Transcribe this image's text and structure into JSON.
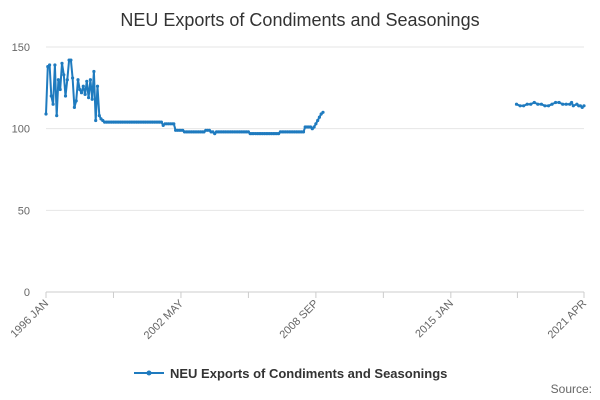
{
  "chart_data": {
    "type": "line",
    "title": "NEU Exports of Condiments and Seasonings",
    "xlabel": "",
    "ylabel": "",
    "ylim": [
      0,
      150
    ],
    "y_ticks": [
      0,
      50,
      100,
      150
    ],
    "x_range": [
      "1996-01",
      "2021-04"
    ],
    "x_tick_labels": [
      {
        "date": "1996-01",
        "label": "1996 JAN"
      },
      {
        "date": "2002-05",
        "label": "2002 MAY"
      },
      {
        "date": "2008-09",
        "label": "2008 SEP"
      },
      {
        "date": "2015-01",
        "label": "2015 JAN"
      },
      {
        "date": "2021-04",
        "label": "2021 APR"
      }
    ],
    "grid": true,
    "legend_position": "bottom",
    "series": [
      {
        "name": "NEU Exports of Condiments and Seasonings",
        "color": "#1f7bbf",
        "segments": [
          [
            [
              "1996-01",
              109
            ],
            [
              "1996-02",
              138
            ],
            [
              "1996-03",
              139
            ],
            [
              "1996-04",
              120
            ],
            [
              "1996-05",
              115
            ],
            [
              "1996-06",
              139
            ],
            [
              "1996-07",
              108
            ],
            [
              "1996-08",
              130
            ],
            [
              "1996-09",
              124
            ],
            [
              "1996-10",
              140
            ],
            [
              "1996-11",
              133
            ],
            [
              "1996-12",
              120
            ],
            [
              "1997-01",
              130
            ],
            [
              "1997-02",
              142
            ],
            [
              "1997-03",
              142
            ],
            [
              "1997-04",
              131
            ],
            [
              "1997-05",
              113
            ],
            [
              "1997-06",
              117
            ],
            [
              "1997-07",
              130
            ],
            [
              "1997-08",
              124
            ],
            [
              "1997-09",
              122
            ],
            [
              "1997-10",
              126
            ],
            [
              "1997-11",
              121
            ],
            [
              "1997-12",
              129
            ],
            [
              "1998-01",
              119
            ],
            [
              "1998-02",
              130
            ],
            [
              "1998-03",
              118
            ],
            [
              "1998-04",
              135
            ],
            [
              "1998-05",
              105
            ],
            [
              "1998-06",
              126
            ],
            [
              "1998-07",
              108
            ],
            [
              "1998-08",
              106
            ],
            [
              "1998-09",
              105
            ],
            [
              "1998-10",
              104
            ],
            [
              "1998-11",
              104
            ],
            [
              "1998-12",
              104
            ],
            [
              "1999-01",
              104
            ],
            [
              "1999-02",
              104
            ],
            [
              "1999-03",
              104
            ],
            [
              "1999-04",
              104
            ],
            [
              "1999-05",
              104
            ],
            [
              "1999-06",
              104
            ],
            [
              "1999-07",
              104
            ],
            [
              "1999-08",
              104
            ],
            [
              "1999-09",
              104
            ],
            [
              "1999-10",
              104
            ],
            [
              "1999-11",
              104
            ],
            [
              "1999-12",
              104
            ],
            [
              "2000-01",
              104
            ],
            [
              "2000-02",
              104
            ],
            [
              "2000-03",
              104
            ],
            [
              "2000-04",
              104
            ],
            [
              "2000-05",
              104
            ],
            [
              "2000-06",
              104
            ],
            [
              "2000-07",
              104
            ],
            [
              "2000-08",
              104
            ],
            [
              "2000-09",
              104
            ],
            [
              "2000-10",
              104
            ],
            [
              "2000-11",
              104
            ],
            [
              "2000-12",
              104
            ],
            [
              "2001-01",
              104
            ],
            [
              "2001-02",
              104
            ],
            [
              "2001-03",
              104
            ],
            [
              "2001-04",
              104
            ],
            [
              "2001-05",
              104
            ],
            [
              "2001-06",
              104
            ],
            [
              "2001-07",
              102
            ],
            [
              "2001-08",
              103
            ],
            [
              "2001-09",
              103
            ],
            [
              "2001-10",
              103
            ],
            [
              "2001-11",
              103
            ],
            [
              "2001-12",
              103
            ],
            [
              "2002-01",
              103
            ],
            [
              "2002-02",
              99
            ],
            [
              "2002-03",
              99
            ],
            [
              "2002-04",
              99
            ],
            [
              "2002-05",
              99
            ],
            [
              "2002-06",
              99
            ],
            [
              "2002-07",
              98
            ],
            [
              "2002-08",
              98
            ],
            [
              "2002-09",
              98
            ],
            [
              "2002-10",
              98
            ],
            [
              "2002-11",
              98
            ],
            [
              "2002-12",
              98
            ],
            [
              "2003-01",
              98
            ],
            [
              "2003-02",
              98
            ],
            [
              "2003-03",
              98
            ],
            [
              "2003-04",
              98
            ],
            [
              "2003-05",
              98
            ],
            [
              "2003-06",
              98
            ],
            [
              "2003-07",
              99
            ],
            [
              "2003-08",
              99
            ],
            [
              "2003-09",
              99
            ],
            [
              "2003-10",
              98
            ],
            [
              "2003-11",
              98
            ],
            [
              "2003-12",
              97
            ],
            [
              "2004-01",
              98
            ],
            [
              "2004-02",
              98
            ],
            [
              "2004-03",
              98
            ],
            [
              "2004-04",
              98
            ],
            [
              "2004-05",
              98
            ],
            [
              "2004-06",
              98
            ],
            [
              "2004-07",
              98
            ],
            [
              "2004-08",
              98
            ],
            [
              "2004-09",
              98
            ],
            [
              "2004-10",
              98
            ],
            [
              "2004-11",
              98
            ],
            [
              "2004-12",
              98
            ],
            [
              "2005-01",
              98
            ],
            [
              "2005-02",
              98
            ],
            [
              "2005-03",
              98
            ],
            [
              "2005-04",
              98
            ],
            [
              "2005-05",
              98
            ],
            [
              "2005-06",
              98
            ],
            [
              "2005-07",
              98
            ],
            [
              "2005-08",
              97
            ],
            [
              "2005-09",
              97
            ],
            [
              "2005-10",
              97
            ],
            [
              "2005-11",
              97
            ],
            [
              "2005-12",
              97
            ],
            [
              "2006-01",
              97
            ],
            [
              "2006-02",
              97
            ],
            [
              "2006-03",
              97
            ],
            [
              "2006-04",
              97
            ],
            [
              "2006-05",
              97
            ],
            [
              "2006-06",
              97
            ],
            [
              "2006-07",
              97
            ],
            [
              "2006-08",
              97
            ],
            [
              "2006-09",
              97
            ],
            [
              "2006-10",
              97
            ],
            [
              "2006-11",
              97
            ],
            [
              "2006-12",
              97
            ],
            [
              "2007-01",
              98
            ],
            [
              "2007-02",
              98
            ],
            [
              "2007-03",
              98
            ],
            [
              "2007-04",
              98
            ],
            [
              "2007-05",
              98
            ],
            [
              "2007-06",
              98
            ],
            [
              "2007-07",
              98
            ],
            [
              "2007-08",
              98
            ],
            [
              "2007-09",
              98
            ],
            [
              "2007-10",
              98
            ],
            [
              "2007-11",
              98
            ],
            [
              "2007-12",
              98
            ],
            [
              "2008-01",
              98
            ],
            [
              "2008-02",
              98
            ],
            [
              "2008-03",
              101
            ],
            [
              "2008-04",
              101
            ],
            [
              "2008-05",
              101
            ],
            [
              "2008-06",
              101
            ],
            [
              "2008-07",
              100
            ],
            [
              "2008-08",
              101
            ],
            [
              "2008-09",
              103
            ],
            [
              "2008-10",
              105
            ],
            [
              "2008-11",
              107
            ],
            [
              "2008-12",
              109
            ],
            [
              "2009-01",
              110
            ]
          ],
          [
            [
              "2018-02",
              115
            ],
            [
              "2018-04",
              114
            ],
            [
              "2018-06",
              114
            ],
            [
              "2018-08",
              115
            ],
            [
              "2018-10",
              115
            ],
            [
              "2018-12",
              116
            ],
            [
              "2019-02",
              115
            ],
            [
              "2019-04",
              115
            ],
            [
              "2019-06",
              114
            ],
            [
              "2019-08",
              114
            ],
            [
              "2019-10",
              115
            ],
            [
              "2019-12",
              116
            ],
            [
              "2020-02",
              116
            ],
            [
              "2020-04",
              115
            ],
            [
              "2020-06",
              115
            ],
            [
              "2020-08",
              115
            ],
            [
              "2020-09",
              116
            ],
            [
              "2020-10",
              114
            ],
            [
              "2020-12",
              115
            ],
            [
              "2021-01",
              114
            ],
            [
              "2021-02",
              114
            ],
            [
              "2021-03",
              113
            ],
            [
              "2021-04",
              114
            ]
          ]
        ]
      }
    ]
  },
  "legend": {
    "label": "NEU Exports of Condiments and Seasonings"
  },
  "footer": {
    "source_label": "Source:"
  }
}
